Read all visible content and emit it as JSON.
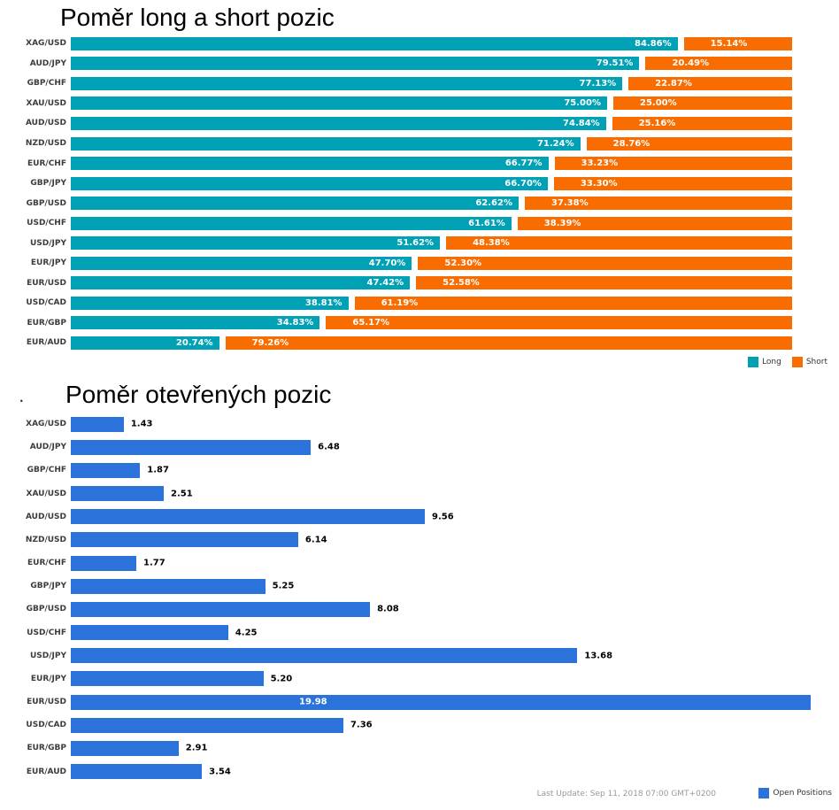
{
  "page": {
    "background": "#ffffff"
  },
  "chart_data": [
    {
      "type": "bar",
      "stacked": true,
      "orientation": "horizontal",
      "title": "Poměr long a short pozic",
      "xlim": [
        0,
        100
      ],
      "grid": false,
      "legend_position": "bottom-right",
      "value_label_format": "0.00%",
      "categories": [
        "XAG/USD",
        "AUD/JPY",
        "GBP/CHF",
        "XAU/USD",
        "AUD/USD",
        "NZD/USD",
        "EUR/CHF",
        "GBP/JPY",
        "GBP/USD",
        "USD/CHF",
        "USD/JPY",
        "EUR/JPY",
        "EUR/USD",
        "USD/CAD",
        "EUR/GBP",
        "EUR/AUD"
      ],
      "series": [
        {
          "name": "Long",
          "color": "#00a0b5",
          "values": [
            84.86,
            79.51,
            77.13,
            75.0,
            74.84,
            71.24,
            66.77,
            66.7,
            62.62,
            61.61,
            51.62,
            47.7,
            47.42,
            38.81,
            34.83,
            20.74
          ]
        },
        {
          "name": "Short",
          "color": "#f96c00",
          "values": [
            15.14,
            20.49,
            22.87,
            25.0,
            25.16,
            28.76,
            33.23,
            33.3,
            37.38,
            38.39,
            48.38,
            52.3,
            52.58,
            61.19,
            65.17,
            79.26
          ]
        }
      ]
    },
    {
      "type": "bar",
      "stacked": false,
      "orientation": "horizontal",
      "title": "Poměr otevřených pozic",
      "subtitle": ".",
      "xlim": [
        0,
        20
      ],
      "grid": false,
      "legend_position": "bottom-right",
      "value_label_format": "0.00",
      "footer": "Last Update: Sep 11, 2018 07:00 GMT+0200",
      "categories": [
        "XAG/USD",
        "AUD/JPY",
        "GBP/CHF",
        "XAU/USD",
        "AUD/USD",
        "NZD/USD",
        "EUR/CHF",
        "GBP/JPY",
        "GBP/USD",
        "USD/CHF",
        "USD/JPY",
        "EUR/JPY",
        "EUR/USD",
        "USD/CAD",
        "EUR/GBP",
        "EUR/AUD"
      ],
      "series": [
        {
          "name": "Open Positions",
          "color": "#2b73db",
          "values": [
            1.43,
            6.48,
            1.87,
            2.51,
            9.56,
            6.14,
            1.77,
            5.25,
            8.08,
            4.25,
            13.68,
            5.2,
            19.98,
            7.36,
            2.91,
            3.54
          ]
        }
      ]
    }
  ]
}
